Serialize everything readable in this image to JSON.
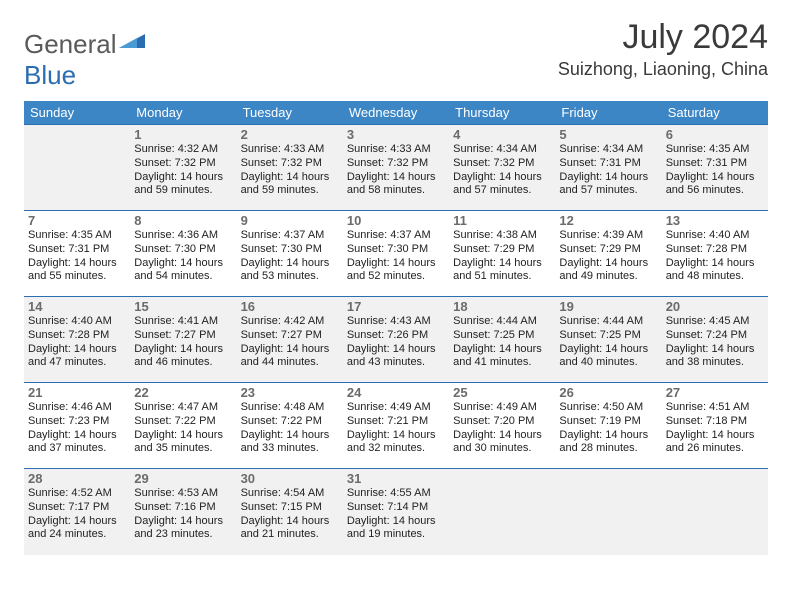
{
  "brand": {
    "part1": "General",
    "part2": "Blue"
  },
  "title": "July 2024",
  "location": "Suizhong, Liaoning, China",
  "colors": {
    "header_bg": "#3d86c6",
    "header_text": "#ffffff",
    "border": "#2a6db0",
    "shade": "#f1f1f1",
    "daynum": "#6b6b6b",
    "body_text": "#222222",
    "title_text": "#3a3a3a"
  },
  "weekdays": [
    "Sunday",
    "Monday",
    "Tuesday",
    "Wednesday",
    "Thursday",
    "Friday",
    "Saturday"
  ],
  "weeks": [
    [
      null,
      {
        "n": "1",
        "sr": "4:32 AM",
        "ss": "7:32 PM",
        "dmin": "59"
      },
      {
        "n": "2",
        "sr": "4:33 AM",
        "ss": "7:32 PM",
        "dmin": "59"
      },
      {
        "n": "3",
        "sr": "4:33 AM",
        "ss": "7:32 PM",
        "dmin": "58"
      },
      {
        "n": "4",
        "sr": "4:34 AM",
        "ss": "7:32 PM",
        "dmin": "57"
      },
      {
        "n": "5",
        "sr": "4:34 AM",
        "ss": "7:31 PM",
        "dmin": "57"
      },
      {
        "n": "6",
        "sr": "4:35 AM",
        "ss": "7:31 PM",
        "dmin": "56"
      }
    ],
    [
      {
        "n": "7",
        "sr": "4:35 AM",
        "ss": "7:31 PM",
        "dmin": "55"
      },
      {
        "n": "8",
        "sr": "4:36 AM",
        "ss": "7:30 PM",
        "dmin": "54"
      },
      {
        "n": "9",
        "sr": "4:37 AM",
        "ss": "7:30 PM",
        "dmin": "53"
      },
      {
        "n": "10",
        "sr": "4:37 AM",
        "ss": "7:30 PM",
        "dmin": "52"
      },
      {
        "n": "11",
        "sr": "4:38 AM",
        "ss": "7:29 PM",
        "dmin": "51"
      },
      {
        "n": "12",
        "sr": "4:39 AM",
        "ss": "7:29 PM",
        "dmin": "49"
      },
      {
        "n": "13",
        "sr": "4:40 AM",
        "ss": "7:28 PM",
        "dmin": "48"
      }
    ],
    [
      {
        "n": "14",
        "sr": "4:40 AM",
        "ss": "7:28 PM",
        "dmin": "47"
      },
      {
        "n": "15",
        "sr": "4:41 AM",
        "ss": "7:27 PM",
        "dmin": "46"
      },
      {
        "n": "16",
        "sr": "4:42 AM",
        "ss": "7:27 PM",
        "dmin": "44"
      },
      {
        "n": "17",
        "sr": "4:43 AM",
        "ss": "7:26 PM",
        "dmin": "43"
      },
      {
        "n": "18",
        "sr": "4:44 AM",
        "ss": "7:25 PM",
        "dmin": "41"
      },
      {
        "n": "19",
        "sr": "4:44 AM",
        "ss": "7:25 PM",
        "dmin": "40"
      },
      {
        "n": "20",
        "sr": "4:45 AM",
        "ss": "7:24 PM",
        "dmin": "38"
      }
    ],
    [
      {
        "n": "21",
        "sr": "4:46 AM",
        "ss": "7:23 PM",
        "dmin": "37"
      },
      {
        "n": "22",
        "sr": "4:47 AM",
        "ss": "7:22 PM",
        "dmin": "35"
      },
      {
        "n": "23",
        "sr": "4:48 AM",
        "ss": "7:22 PM",
        "dmin": "33"
      },
      {
        "n": "24",
        "sr": "4:49 AM",
        "ss": "7:21 PM",
        "dmin": "32"
      },
      {
        "n": "25",
        "sr": "4:49 AM",
        "ss": "7:20 PM",
        "dmin": "30"
      },
      {
        "n": "26",
        "sr": "4:50 AM",
        "ss": "7:19 PM",
        "dmin": "28"
      },
      {
        "n": "27",
        "sr": "4:51 AM",
        "ss": "7:18 PM",
        "dmin": "26"
      }
    ],
    [
      {
        "n": "28",
        "sr": "4:52 AM",
        "ss": "7:17 PM",
        "dmin": "24"
      },
      {
        "n": "29",
        "sr": "4:53 AM",
        "ss": "7:16 PM",
        "dmin": "23"
      },
      {
        "n": "30",
        "sr": "4:54 AM",
        "ss": "7:15 PM",
        "dmin": "21"
      },
      {
        "n": "31",
        "sr": "4:55 AM",
        "ss": "7:14 PM",
        "dmin": "19"
      },
      null,
      null,
      null
    ]
  ],
  "labels": {
    "sunrise_prefix": "Sunrise: ",
    "sunset_prefix": "Sunset: ",
    "daylight_prefix": "Daylight: 14 hours and ",
    "daylight_suffix": " minutes."
  }
}
